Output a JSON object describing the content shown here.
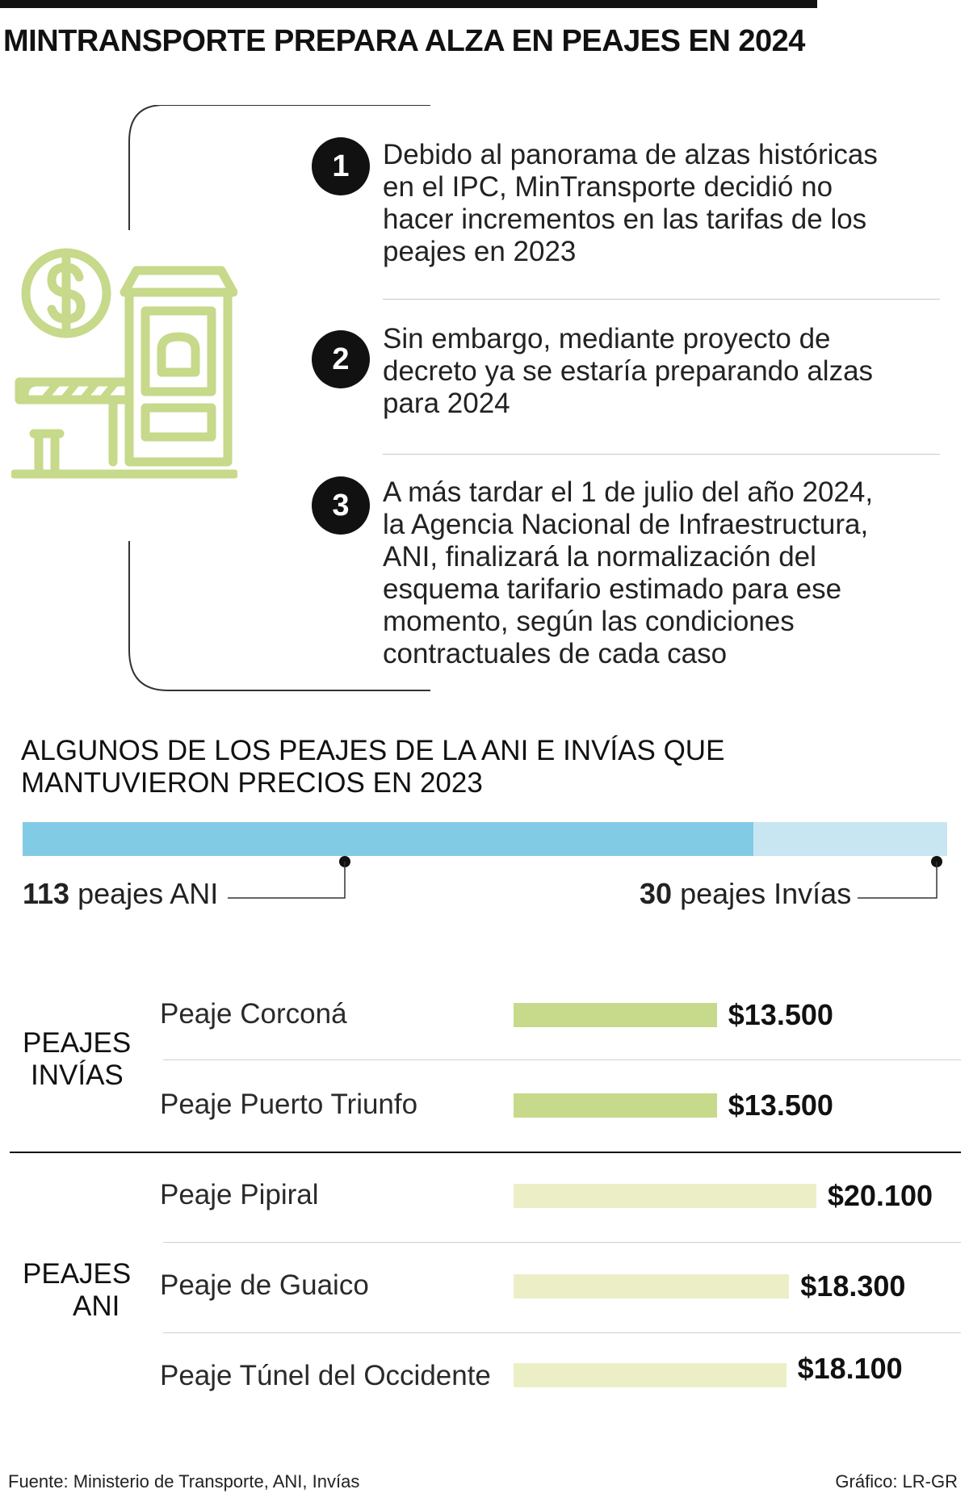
{
  "title": "MINTRANSPORTE PREPARA ALZA EN PEAJES EN 2024",
  "icons": {
    "toll": "toll-booth-dollar-icon"
  },
  "steps": [
    {
      "number": "1",
      "text": "Debido al panorama de alzas históricas en el IPC, MinTransporte decidió no hacer incrementos en las tarifas de los peajes en 2023"
    },
    {
      "number": "2",
      "text": "Sin embargo, mediante proyecto de decreto ya se estaría preparando alzas para 2024"
    },
    {
      "number": "3",
      "text": "A más tardar el 1 de julio del año 2024, la Agencia Nacional de Infraestructura, ANI, finalizará la normalización del esquema tarifario estimado para ese momento, según las condiciones contractuales de cada caso"
    }
  ],
  "colors": {
    "ani_bar": "#82cbe4",
    "invias_bar": "#c8e6f2",
    "invias_toll_bar": "#c7d98a",
    "ani_toll_bar": "#ecefc6",
    "icon": "#c7d98a"
  },
  "chart_data": [
    {
      "type": "bar",
      "title": "ALGUNOS DE LOS PEAJES DE LA ANI E INVÍAS QUE MANTUVIERON PRECIOS EN 2023",
      "orientation": "horizontal-stacked",
      "series": [
        {
          "name": "peajes ANI",
          "value": 113,
          "value_label": "113"
        },
        {
          "name": "peajes Invías",
          "value": 30,
          "value_label": "30"
        }
      ]
    },
    {
      "type": "bar",
      "orientation": "horizontal",
      "groups": [
        {
          "label": "PEAJES INVÍAS",
          "label_lines": [
            "PEAJES",
            "INVÍAS"
          ],
          "items": [
            {
              "name": "Peaje Corconá",
              "value": 13500,
              "value_label": "$13.500"
            },
            {
              "name": "Peaje Puerto Triunfo",
              "value": 13500,
              "value_label": "$13.500"
            }
          ]
        },
        {
          "label": "PEAJES ANI",
          "label_lines": [
            "PEAJES",
            "ANI"
          ],
          "items": [
            {
              "name": "Peaje Pipiral",
              "value": 20100,
              "value_label": "$20.100"
            },
            {
              "name": "Peaje de Guaico",
              "value": 18300,
              "value_label": "$18.300"
            },
            {
              "name": "Peaje Túnel del Occidente",
              "value": 18100,
              "value_label": "$18.100"
            }
          ]
        }
      ]
    }
  ],
  "footer": {
    "source": "Fuente: Ministerio de Transporte, ANI, Invías",
    "credit": "Gráfico: LR-GR"
  }
}
